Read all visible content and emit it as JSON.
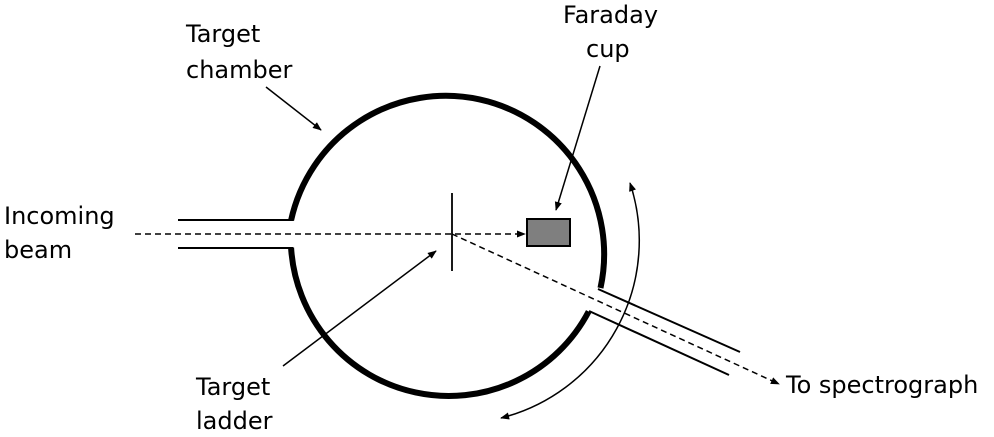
{
  "diagram": {
    "labels": {
      "target_chamber": [
        "Target",
        "chamber"
      ],
      "faraday_cup": [
        "Faraday",
        "cup"
      ],
      "incoming_beam": [
        "Incoming",
        "beam"
      ],
      "target_ladder": [
        "Target",
        "ladder"
      ],
      "to_spectrograph": "To spectrograph"
    },
    "colors": {
      "stroke": "#000000",
      "faraday_cup_fill": "#7f7f7f",
      "background": "#ffffff"
    }
  }
}
